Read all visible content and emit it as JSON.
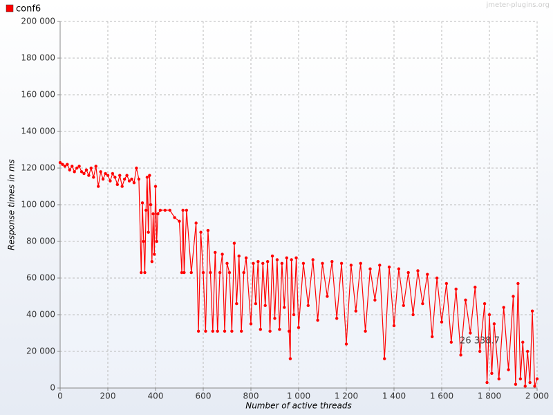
{
  "chart_data": {
    "type": "line",
    "watermark": "jmeter-plugins.org",
    "x_label": "Number of active threads",
    "y_label": "Response times in ms",
    "annotation": "26 338.7",
    "legend": "top-left",
    "grid": true,
    "xlim": [
      0,
      2000
    ],
    "xticks": [
      0,
      200,
      400,
      600,
      800,
      {
        "value": 1000,
        "label": "1 000"
      },
      {
        "value": 1200,
        "label": "1 200"
      },
      {
        "value": 1400,
        "label": "1 400"
      },
      {
        "value": 1600,
        "label": "1 600"
      },
      {
        "value": 1800,
        "label": "1 800"
      },
      {
        "value": 2000,
        "label": "2 000"
      }
    ],
    "ylim": [
      0,
      200000
    ],
    "yticks": [
      0,
      {
        "value": 20000,
        "label": "20 000"
      },
      {
        "value": 40000,
        "label": "40 000"
      },
      {
        "value": 60000,
        "label": "60 000"
      },
      {
        "value": 80000,
        "label": "80 000"
      },
      {
        "value": 100000,
        "label": "100 000"
      },
      {
        "value": 120000,
        "label": "120 000"
      },
      {
        "value": 140000,
        "label": "140 000"
      },
      {
        "value": 160000,
        "label": "160 000"
      },
      {
        "value": 180000,
        "label": "180 000"
      },
      {
        "value": 200000,
        "label": "200 000"
      }
    ],
    "x": [
      0,
      10,
      20,
      30,
      40,
      50,
      60,
      70,
      80,
      90,
      100,
      110,
      120,
      130,
      140,
      150,
      160,
      170,
      180,
      190,
      200,
      210,
      220,
      230,
      240,
      250,
      260,
      270,
      280,
      290,
      300,
      310,
      320,
      330,
      340,
      345,
      350,
      355,
      360,
      365,
      370,
      375,
      380,
      385,
      390,
      395,
      400,
      405,
      410,
      420,
      440,
      460,
      480,
      500,
      510,
      515,
      520,
      530,
      550,
      570,
      580,
      590,
      600,
      610,
      620,
      630,
      640,
      650,
      660,
      670,
      680,
      690,
      700,
      710,
      720,
      730,
      740,
      750,
      760,
      770,
      780,
      800,
      810,
      820,
      830,
      840,
      850,
      860,
      870,
      880,
      890,
      900,
      910,
      920,
      930,
      940,
      950,
      960,
      965,
      970,
      980,
      990,
      1000,
      1020,
      1040,
      1060,
      1080,
      1100,
      1120,
      1140,
      1160,
      1180,
      1200,
      1220,
      1240,
      1260,
      1280,
      1300,
      1320,
      1340,
      1360,
      1380,
      1400,
      1420,
      1440,
      1460,
      1480,
      1500,
      1520,
      1540,
      1560,
      1580,
      1600,
      1620,
      1640,
      1660,
      1680,
      1700,
      1720,
      1740,
      1760,
      1780,
      1790,
      1800,
      1810,
      1820,
      1840,
      1860,
      1880,
      1900,
      1910,
      1920,
      1930,
      1940,
      1950,
      1960,
      1970,
      1980,
      1990,
      2000
    ],
    "series": [
      {
        "name": "conf6",
        "color": "#ff0000",
        "values": [
          123000,
          122000,
          121000,
          122000,
          119000,
          121000,
          118000,
          120000,
          121000,
          118000,
          117000,
          119000,
          116000,
          120000,
          115000,
          121000,
          110000,
          118000,
          114000,
          117000,
          116000,
          113000,
          117000,
          115000,
          111000,
          116000,
          110000,
          114000,
          116000,
          113000,
          114000,
          112000,
          120000,
          114000,
          63000,
          101000,
          80000,
          63000,
          97000,
          115000,
          85000,
          116000,
          100000,
          69000,
          95000,
          73000,
          110000,
          80000,
          95000,
          97000,
          97000,
          97000,
          93000,
          91000,
          63000,
          97000,
          63000,
          97000,
          63000,
          90000,
          31000,
          85000,
          63000,
          31000,
          86000,
          63000,
          31000,
          74000,
          31000,
          63000,
          73000,
          31000,
          68000,
          63000,
          31000,
          79000,
          46000,
          72000,
          31000,
          63000,
          71000,
          35000,
          68000,
          46000,
          69000,
          32000,
          68000,
          45000,
          69000,
          31000,
          72000,
          38000,
          70000,
          32000,
          68000,
          44000,
          71000,
          31000,
          16000,
          70000,
          40000,
          71000,
          33000,
          68000,
          45000,
          70000,
          37000,
          68000,
          50000,
          69000,
          38000,
          68000,
          24000,
          67000,
          42000,
          68000,
          31000,
          65000,
          48000,
          67000,
          16000,
          66000,
          34000,
          65000,
          45000,
          63000,
          40000,
          64000,
          46000,
          62000,
          28000,
          60000,
          36000,
          57000,
          25000,
          54000,
          18000,
          48000,
          30000,
          55000,
          20000,
          46000,
          3000,
          40000,
          8000,
          35000,
          5000,
          44000,
          10000,
          50000,
          2000,
          57000,
          5000,
          25000,
          1000,
          20000,
          3000,
          42000,
          1000,
          5000
        ]
      }
    ]
  }
}
